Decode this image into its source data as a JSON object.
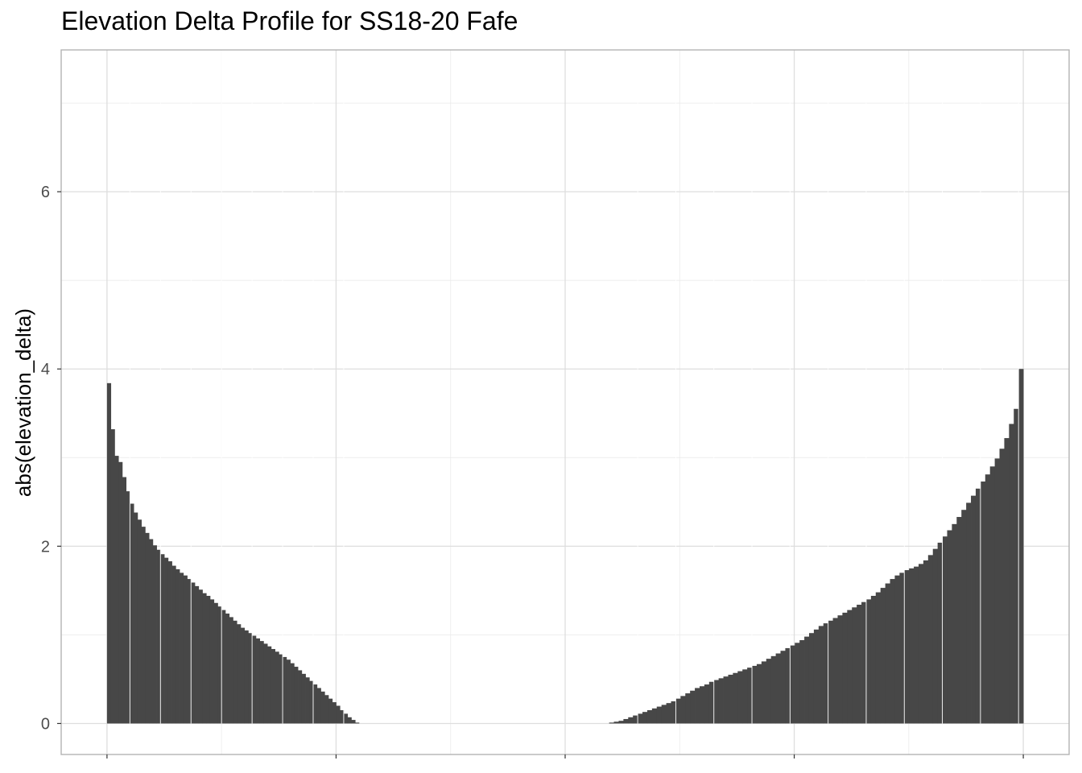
{
  "chart_data": {
    "type": "bar",
    "title": "Elevation Delta Profile for SS18-20 Fafe",
    "xlabel": "",
    "ylabel": "abs(elevation_delta)",
    "ylim": [
      -0.35,
      7.6
    ],
    "xlim": [
      -0.05,
      1.05
    ],
    "y_ticks": [
      0,
      2,
      4,
      6
    ],
    "x_tick_labels": [],
    "grid": true,
    "theme": "light",
    "bar_color": "#474747",
    "falling_profile": {
      "x_start": 0.0,
      "x_end": 0.275,
      "y_values": [
        3.84,
        3.32,
        3.02,
        2.95,
        2.78,
        2.62,
        2.48,
        2.38,
        2.3,
        2.22,
        2.15,
        2.08,
        2.01,
        1.96,
        1.91,
        1.87,
        1.83,
        1.78,
        1.74,
        1.7,
        1.67,
        1.63,
        1.59,
        1.55,
        1.51,
        1.47,
        1.44,
        1.4,
        1.36,
        1.32,
        1.28,
        1.24,
        1.2,
        1.16,
        1.12,
        1.08,
        1.05,
        1.02,
        0.99,
        0.96,
        0.93,
        0.9,
        0.87,
        0.84,
        0.81,
        0.78,
        0.75,
        0.72,
        0.68,
        0.64,
        0.6,
        0.56,
        0.52,
        0.48,
        0.44,
        0.4,
        0.36,
        0.32,
        0.28,
        0.24,
        0.2,
        0.15,
        0.11,
        0.07,
        0.04,
        0.01
      ]
    },
    "rising_profile": {
      "x_start": 0.548,
      "x_end": 1.0,
      "y_values": [
        0.01,
        0.02,
        0.03,
        0.05,
        0.07,
        0.09,
        0.11,
        0.13,
        0.15,
        0.17,
        0.19,
        0.21,
        0.23,
        0.25,
        0.28,
        0.31,
        0.34,
        0.37,
        0.4,
        0.42,
        0.44,
        0.47,
        0.49,
        0.51,
        0.53,
        0.55,
        0.57,
        0.59,
        0.61,
        0.63,
        0.65,
        0.67,
        0.7,
        0.73,
        0.76,
        0.79,
        0.82,
        0.85,
        0.88,
        0.91,
        0.94,
        0.98,
        1.02,
        1.06,
        1.1,
        1.13,
        1.16,
        1.19,
        1.22,
        1.25,
        1.28,
        1.31,
        1.34,
        1.37,
        1.4,
        1.44,
        1.48,
        1.53,
        1.58,
        1.63,
        1.67,
        1.7,
        1.73,
        1.75,
        1.77,
        1.8,
        1.84,
        1.9,
        1.97,
        2.04,
        2.11,
        2.18,
        2.25,
        2.33,
        2.41,
        2.49,
        2.57,
        2.65,
        2.73,
        2.81,
        2.9,
        2.99,
        3.1,
        3.22,
        3.38,
        3.55,
        4.0
      ]
    }
  }
}
